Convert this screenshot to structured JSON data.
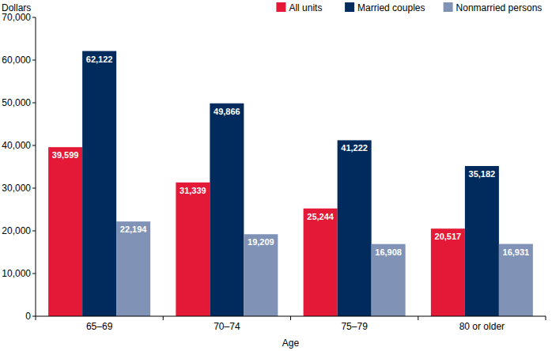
{
  "chart_data": {
    "type": "bar",
    "y_label": "Dollars",
    "x_label": "Age",
    "categories": [
      "65–69",
      "70–74",
      "75–79",
      "80 or older"
    ],
    "series": [
      {
        "name": "All units",
        "color": "#e31937",
        "values": [
          39599,
          31339,
          25244,
          20517
        ],
        "value_labels": [
          "39,599",
          "31,339",
          "25,244",
          "20,517"
        ]
      },
      {
        "name": "Married couples",
        "color": "#002b5c",
        "values": [
          62122,
          49866,
          41222,
          35182
        ],
        "value_labels": [
          "62,122",
          "49,866",
          "41,222",
          "35,182"
        ]
      },
      {
        "name": "Nonmarried persons",
        "color": "#8093b6",
        "values": [
          22194,
          19209,
          16908,
          16931
        ],
        "value_labels": [
          "22,194",
          "19,209",
          "16,908",
          "16,931"
        ]
      }
    ],
    "ylim": [
      0,
      70000
    ],
    "yticks": [
      0,
      {
        "value": 10000,
        "label": "10,000"
      },
      {
        "value": 20000,
        "label": "20,000"
      },
      {
        "value": 30000,
        "label": "30,000"
      },
      {
        "value": 40000,
        "label": "40,000"
      },
      {
        "value": 50000,
        "label": "50,000"
      },
      {
        "value": 60000,
        "label": "60,000"
      },
      {
        "value": 70000,
        "label": "70,000"
      }
    ],
    "grid": false,
    "legend": "top-right",
    "data_labels": true
  }
}
